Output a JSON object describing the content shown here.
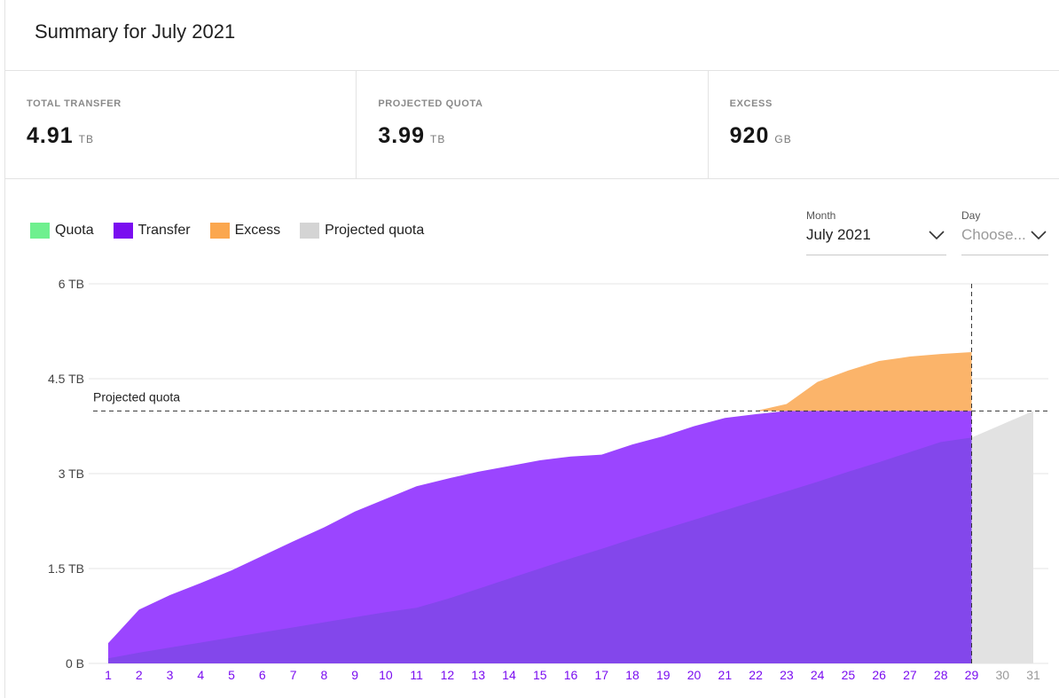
{
  "header": {
    "title": "Summary for July 2021"
  },
  "stats": [
    {
      "label": "TOTAL TRANSFER",
      "value": "4.91",
      "unit": "TB"
    },
    {
      "label": "PROJECTED QUOTA",
      "value": "3.99",
      "unit": "TB"
    },
    {
      "label": "EXCESS",
      "value": "920",
      "unit": "GB"
    }
  ],
  "legend": [
    {
      "label": "Quota",
      "color": "#6ff08f"
    },
    {
      "label": "Transfer",
      "color": "#7a0df0"
    },
    {
      "label": "Excess",
      "color": "#fba74f"
    },
    {
      "label": "Projected quota",
      "color": "#d4d4d4"
    }
  ],
  "filters": {
    "month": {
      "label": "Month",
      "value": "July 2021"
    },
    "day": {
      "label": "Day",
      "placeholder": "Choose..."
    }
  },
  "icons": {
    "dropdown": "chevron-down-icon"
  },
  "chart_data": {
    "type": "area",
    "x": [
      1,
      2,
      3,
      4,
      5,
      6,
      7,
      8,
      9,
      10,
      11,
      12,
      13,
      14,
      15,
      16,
      17,
      18,
      19,
      20,
      21,
      22,
      23,
      24,
      25,
      26,
      27,
      28,
      29,
      30,
      31
    ],
    "x_tick_colors": {
      "active": "#7a0df0",
      "inactive": "#9a9a9a"
    },
    "last_active_day": 29,
    "y_ticks": [
      {
        "value": 0,
        "label": "0 B"
      },
      {
        "value": 1.5,
        "label": "1.5 TB"
      },
      {
        "value": 3,
        "label": "3 TB"
      },
      {
        "value": 4.5,
        "label": "4.5 TB"
      },
      {
        "value": 6,
        "label": "6 TB"
      }
    ],
    "ylim": [
      0,
      6
    ],
    "ylabel_unit": "TB",
    "projected_quota": {
      "value": 3.99,
      "label": "Projected quota"
    },
    "series": [
      {
        "name": "Transfer",
        "color": "#9b45ff",
        "x": [
          1,
          2,
          3,
          4,
          5,
          6,
          7,
          8,
          9,
          10,
          11,
          12,
          13,
          14,
          15,
          16,
          17,
          18,
          19,
          20,
          21,
          22,
          23,
          24,
          25,
          26,
          27,
          28,
          29
        ],
        "values": [
          0.32,
          0.85,
          1.08,
          1.27,
          1.47,
          1.7,
          1.93,
          2.15,
          2.4,
          2.6,
          2.8,
          2.92,
          3.03,
          3.12,
          3.21,
          3.27,
          3.3,
          3.46,
          3.59,
          3.75,
          3.88,
          3.94,
          3.99,
          3.99,
          3.99,
          3.99,
          3.99,
          3.99,
          3.99
        ]
      },
      {
        "name": "Quota",
        "color": "#7f48e8",
        "x": [
          1,
          2,
          3,
          4,
          5,
          6,
          7,
          8,
          9,
          10,
          11,
          12,
          13,
          14,
          15,
          16,
          17,
          18,
          19,
          20,
          21,
          22,
          23,
          24,
          25,
          26,
          27,
          28,
          29
        ],
        "values": [
          0.08,
          0.17,
          0.25,
          0.33,
          0.41,
          0.49,
          0.57,
          0.65,
          0.73,
          0.81,
          0.88,
          1.02,
          1.18,
          1.34,
          1.5,
          1.66,
          1.81,
          1.97,
          2.12,
          2.27,
          2.42,
          2.57,
          2.72,
          2.87,
          3.03,
          3.18,
          3.34,
          3.5,
          3.57
        ]
      },
      {
        "name": "Excess",
        "color": "#fbb46a",
        "x": [
          22,
          23,
          24,
          25,
          26,
          27,
          28,
          29
        ],
        "values": [
          3.99,
          4.1,
          4.45,
          4.63,
          4.78,
          4.85,
          4.89,
          4.92
        ]
      },
      {
        "name": "Projected quota",
        "color": "#e2e2e2",
        "x": [
          29,
          30,
          31
        ],
        "values": [
          3.57,
          3.78,
          3.99
        ]
      }
    ]
  }
}
